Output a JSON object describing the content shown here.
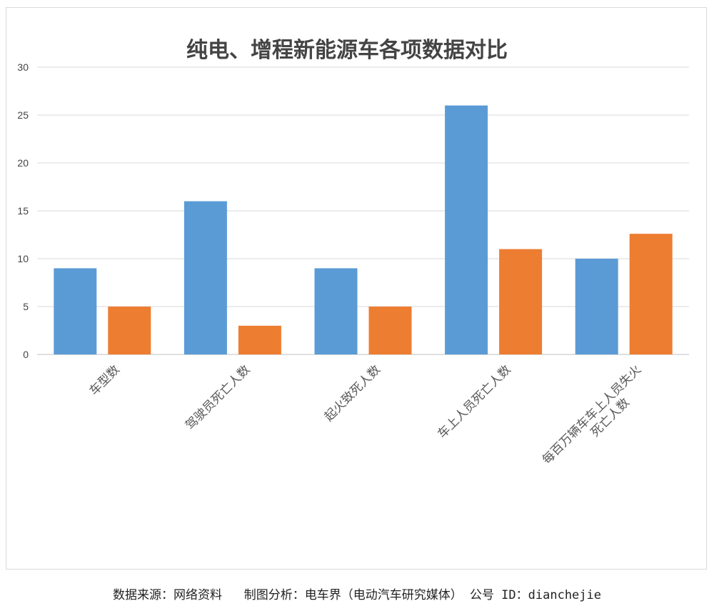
{
  "chart_data": {
    "type": "bar",
    "title": "纯电、增程新能源车各项数据对比",
    "categories": [
      "车型数",
      "驾驶员死亡人数",
      "起火致死人数",
      "车上人员死亡人数",
      "每百万辆车车上人员失火死亡人数"
    ],
    "category_lines": [
      [
        "车型数"
      ],
      [
        "驾驶员死亡人数"
      ],
      [
        "起火致死人数"
      ],
      [
        "车上人员死亡人数"
      ],
      [
        "每百万辆车车上人员失火",
        "死亡人数"
      ]
    ],
    "series": [
      {
        "values": [
          9,
          16,
          9,
          26,
          10
        ],
        "color": "#5b9bd5"
      },
      {
        "values": [
          5,
          3,
          5,
          11,
          12.6
        ],
        "color": "#ed7d31"
      }
    ],
    "yticks": [
      0,
      5,
      10,
      15,
      20,
      25,
      30
    ],
    "ylim": [
      0,
      30
    ],
    "grid": true,
    "legend": false
  },
  "footer": {
    "text": "数据来源：网络资料   制图分析：电车界（电动汽车研究媒体） 公号 ID：dianchejie"
  }
}
